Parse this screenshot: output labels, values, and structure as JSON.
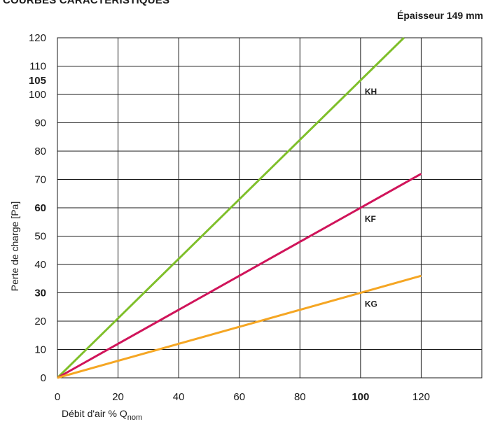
{
  "title": "COURBES CARACTÉRISTIQUES",
  "subtitle": "Épaisseur 149 mm",
  "chart_data": {
    "type": "line",
    "title": "COURBES CARACTÉRISTIQUES",
    "subtitle": "Épaisseur 149 mm",
    "xlabel": "Débit d'air % Q",
    "xlabel_subscript": "nom",
    "ylabel": "Perte de charge [Pa]",
    "xlim": [
      0,
      140
    ],
    "ylim": [
      0,
      120
    ],
    "x_ticks": [
      0,
      20,
      40,
      60,
      80,
      100,
      120
    ],
    "y_ticks": [
      0,
      10,
      20,
      30,
      40,
      50,
      60,
      70,
      80,
      90,
      100,
      110,
      120
    ],
    "extra_y_tick": 105,
    "bold_x_ticks": [
      100
    ],
    "bold_y_ticks": [
      30,
      60,
      105
    ],
    "grid": true,
    "series": [
      {
        "name": "KH",
        "color": "#7fbf2a",
        "x": [
          0,
          114.3
        ],
        "y": [
          0,
          120
        ]
      },
      {
        "name": "KF",
        "color": "#d0145a",
        "x": [
          0,
          120
        ],
        "y": [
          0,
          72
        ]
      },
      {
        "name": "KG",
        "color": "#f5a623",
        "x": [
          0,
          120
        ],
        "y": [
          0,
          36
        ]
      }
    ]
  }
}
